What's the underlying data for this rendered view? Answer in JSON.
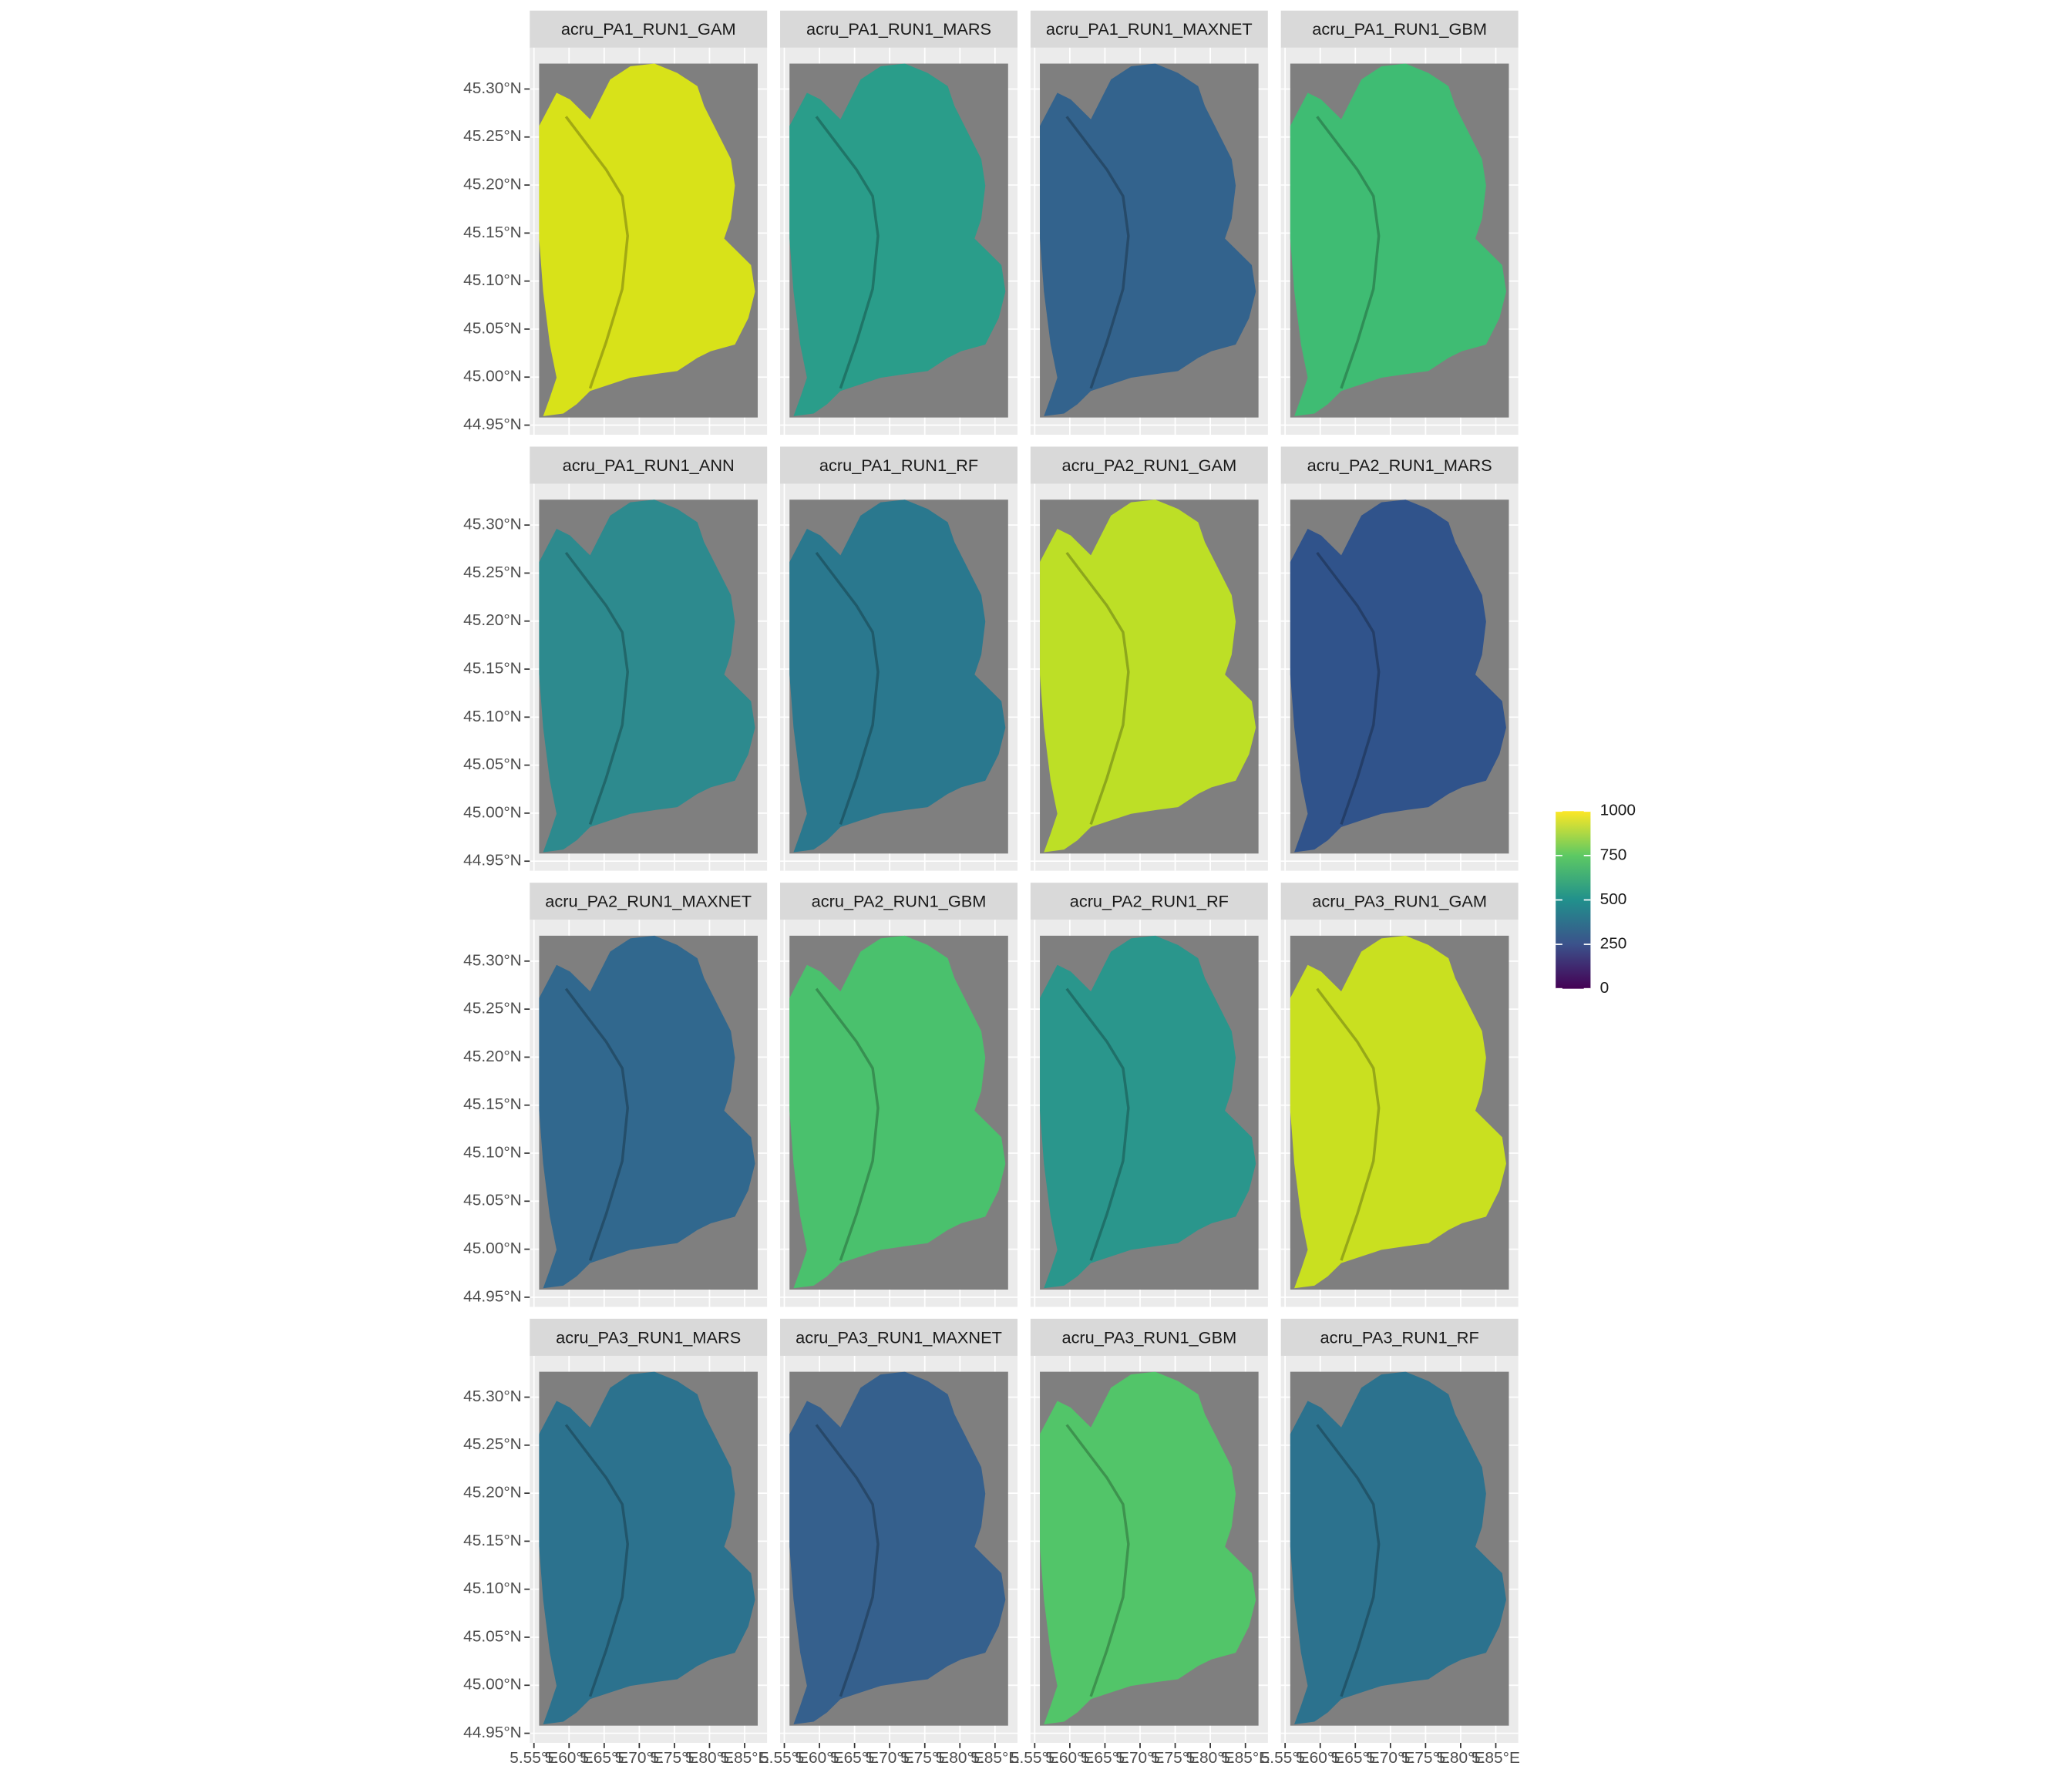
{
  "chart_data": {
    "type": "raster",
    "panels": [
      {
        "title": "acru_PA1_RUN1_GAM",
        "color": "#d8e219"
      },
      {
        "title": "acru_PA1_RUN1_MARS",
        "color": "#2a9d8a"
      },
      {
        "title": "acru_PA1_RUN1_MAXNET",
        "color": "#33638d"
      },
      {
        "title": "acru_PA1_RUN1_GBM",
        "color": "#3fbc73"
      },
      {
        "title": "acru_PA1_RUN1_ANN",
        "color": "#2d8a8e"
      },
      {
        "title": "acru_PA1_RUN1_RF",
        "color": "#2a788e"
      },
      {
        "title": "acru_PA2_RUN1_GAM",
        "color": "#bddf26"
      },
      {
        "title": "acru_PA2_RUN1_MARS",
        "color": "#30538b"
      },
      {
        "title": "acru_PA2_RUN1_MAXNET",
        "color": "#31688e"
      },
      {
        "title": "acru_PA2_RUN1_GBM",
        "color": "#4ac16d"
      },
      {
        "title": "acru_PA2_RUN1_RF",
        "color": "#2a968c"
      },
      {
        "title": "acru_PA3_RUN1_GAM",
        "color": "#c9e020"
      },
      {
        "title": "acru_PA3_RUN1_MARS",
        "color": "#2c728e"
      },
      {
        "title": "acru_PA3_RUN1_MAXNET",
        "color": "#35608d"
      },
      {
        "title": "acru_PA3_RUN1_GBM",
        "color": "#52c569"
      },
      {
        "title": "acru_PA3_RUN1_RF",
        "color": "#2c728e"
      }
    ],
    "xlim": [
      5.544,
      5.882
    ],
    "ylim": [
      44.94,
      45.343
    ],
    "xticks": [
      {
        "value": 5.55,
        "label": "5.55°E"
      },
      {
        "value": 5.6,
        "label": "5.60°E"
      },
      {
        "value": 5.65,
        "label": "5.65°E"
      },
      {
        "value": 5.7,
        "label": "5.70°E"
      },
      {
        "value": 5.75,
        "label": "5.75°E"
      },
      {
        "value": 5.8,
        "label": "5.80°E"
      },
      {
        "value": 5.85,
        "label": "5.85°E"
      }
    ],
    "yticks": [
      {
        "value": 44.95,
        "label": "44.95°N"
      },
      {
        "value": 45.0,
        "label": "45.00°N"
      },
      {
        "value": 45.05,
        "label": "45.05°N"
      },
      {
        "value": 45.1,
        "label": "45.10°N"
      },
      {
        "value": 45.15,
        "label": "45.15°N"
      },
      {
        "value": 45.2,
        "label": "45.20°N"
      },
      {
        "value": 45.25,
        "label": "45.25°N"
      },
      {
        "value": 45.3,
        "label": "45.30°N"
      }
    ],
    "grid": true,
    "colorbar": {
      "lim": [
        0,
        1000
      ],
      "ticks": [
        0,
        250,
        500,
        750,
        1000
      ],
      "colors": [
        "#440154",
        "#3b528b",
        "#21908c",
        "#5dc963",
        "#fde725"
      ]
    }
  }
}
